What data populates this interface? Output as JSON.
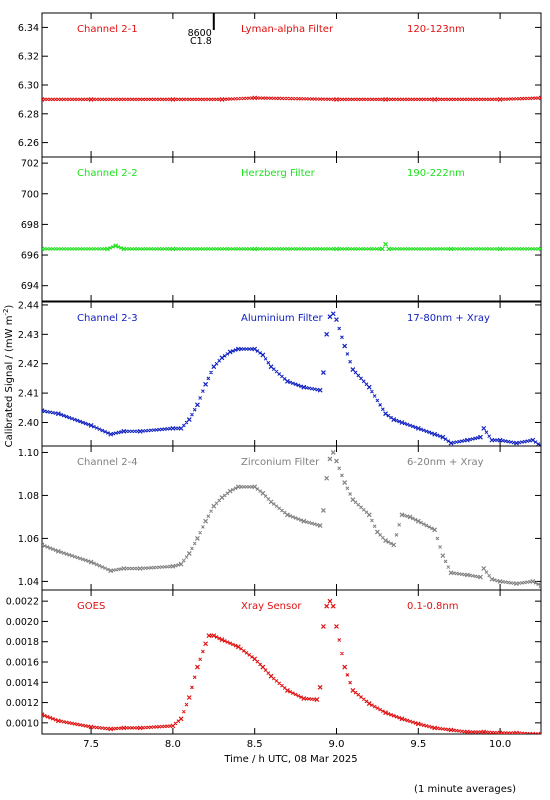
{
  "chart_data": [
    {
      "type": "scatter",
      "header": {
        "channel": "Channel 2-1",
        "filter": "Lyman-alpha Filter",
        "band": "120-123nm"
      },
      "color": "#e01010",
      "yticks": [
        "6.26",
        "6.28",
        "6.30",
        "6.32",
        "6.34"
      ],
      "ylim": [
        6.25,
        6.35
      ],
      "x": [
        7.2,
        7.5,
        8.0,
        8.3,
        8.5,
        9.0,
        9.3,
        9.6,
        10.0,
        10.25
      ],
      "y": [
        6.29,
        6.29,
        6.29,
        6.29,
        6.291,
        6.29,
        6.29,
        6.29,
        6.29,
        6.291
      ]
    },
    {
      "type": "scatter",
      "header": {
        "channel": "Channel 2-2",
        "filter": "Herzberg Filter",
        "band": "190-222nm"
      },
      "color": "#20e020",
      "yticks": [
        "694",
        "696",
        "698",
        "700",
        "702"
      ],
      "ylim": [
        693,
        702.4
      ],
      "x": [
        7.2,
        7.6,
        7.65,
        7.7,
        8.0,
        8.5,
        9.0,
        9.28,
        9.3,
        9.32,
        9.7,
        10.0,
        10.25
      ],
      "y": [
        696.4,
        696.4,
        696.6,
        696.4,
        696.4,
        696.4,
        696.4,
        696.4,
        696.7,
        696.4,
        696.4,
        696.4,
        696.4
      ]
    },
    {
      "type": "scatter",
      "header": {
        "channel": "Channel 2-3",
        "filter": "Aluminium Filter",
        "band": "17-80nm + Xray"
      },
      "color": "#1020c0",
      "yticks": [
        "2.40",
        "2.41",
        "2.42",
        "2.43",
        "2.44"
      ],
      "ylim": [
        2.392,
        2.441
      ],
      "x": [
        7.2,
        7.3,
        7.5,
        7.62,
        7.7,
        7.8,
        8.0,
        8.05,
        8.1,
        8.15,
        8.2,
        8.25,
        8.3,
        8.35,
        8.4,
        8.5,
        8.55,
        8.6,
        8.7,
        8.8,
        8.9,
        8.92,
        8.94,
        8.96,
        8.98,
        9.0,
        9.05,
        9.1,
        9.2,
        9.3,
        9.35,
        9.4,
        9.5,
        9.6,
        9.65,
        9.7,
        9.8,
        9.88,
        9.9,
        9.95,
        10.0,
        10.1,
        10.2,
        10.25
      ],
      "y": [
        2.404,
        2.403,
        2.399,
        2.396,
        2.397,
        2.397,
        2.398,
        2.398,
        2.401,
        2.406,
        2.413,
        2.419,
        2.422,
        2.424,
        2.425,
        2.425,
        2.423,
        2.419,
        2.414,
        2.412,
        2.411,
        2.417,
        2.43,
        2.436,
        2.437,
        2.435,
        2.426,
        2.418,
        2.412,
        2.403,
        2.401,
        2.4,
        2.398,
        2.396,
        2.395,
        2.393,
        2.394,
        2.395,
        2.398,
        2.394,
        2.394,
        2.393,
        2.394,
        2.392
      ]
    },
    {
      "type": "scatter",
      "header": {
        "channel": "Channel 2-4",
        "filter": "Zirconium Filter",
        "band": "6-20nm + Xray"
      },
      "color": "#808080",
      "yticks": [
        "1.04",
        "1.06",
        "1.08",
        "1.10"
      ],
      "ylim": [
        1.036,
        1.103
      ],
      "x": [
        7.2,
        7.3,
        7.5,
        7.62,
        7.7,
        7.8,
        8.0,
        8.05,
        8.1,
        8.15,
        8.2,
        8.25,
        8.3,
        8.35,
        8.4,
        8.5,
        8.55,
        8.6,
        8.7,
        8.8,
        8.9,
        8.92,
        8.94,
        8.96,
        8.98,
        9.0,
        9.05,
        9.1,
        9.2,
        9.25,
        9.3,
        9.35,
        9.4,
        9.45,
        9.5,
        9.6,
        9.65,
        9.7,
        9.8,
        9.88,
        9.9,
        9.95,
        10.0,
        10.1,
        10.2,
        10.25
      ],
      "y": [
        1.057,
        1.054,
        1.049,
        1.045,
        1.046,
        1.046,
        1.047,
        1.048,
        1.053,
        1.06,
        1.068,
        1.075,
        1.079,
        1.082,
        1.084,
        1.084,
        1.081,
        1.077,
        1.071,
        1.068,
        1.066,
        1.073,
        1.088,
        1.097,
        1.1,
        1.096,
        1.086,
        1.078,
        1.071,
        1.063,
        1.059,
        1.057,
        1.071,
        1.07,
        1.068,
        1.064,
        1.052,
        1.044,
        1.043,
        1.042,
        1.046,
        1.041,
        1.04,
        1.039,
        1.04,
        1.038
      ]
    },
    {
      "type": "scatter",
      "header": {
        "channel": "GOES",
        "filter": "Xray Sensor",
        "band": "0.1-0.8nm"
      },
      "color": "#e01010",
      "yticks": [
        "0.0010",
        "0.0012",
        "0.0014",
        "0.0016",
        "0.0018",
        "0.0020",
        "0.0022"
      ],
      "ylim": [
        0.00089,
        0.00231
      ],
      "x": [
        7.2,
        7.3,
        7.5,
        7.62,
        7.7,
        7.8,
        8.0,
        8.05,
        8.1,
        8.15,
        8.2,
        8.22,
        8.25,
        8.3,
        8.4,
        8.5,
        8.55,
        8.6,
        8.7,
        8.8,
        8.88,
        8.9,
        8.92,
        8.94,
        8.96,
        8.98,
        9.0,
        9.05,
        9.1,
        9.2,
        9.3,
        9.4,
        9.5,
        9.6,
        9.7,
        9.8,
        9.9,
        10.0,
        10.1,
        10.2,
        10.25
      ],
      "y": [
        0.00108,
        0.00102,
        0.00096,
        0.00094,
        0.00095,
        0.00095,
        0.00097,
        0.00104,
        0.00125,
        0.00155,
        0.00178,
        0.00186,
        0.00186,
        0.00182,
        0.00175,
        0.00163,
        0.00155,
        0.00146,
        0.00132,
        0.00124,
        0.00123,
        0.00135,
        0.00195,
        0.00215,
        0.0022,
        0.00215,
        0.00195,
        0.00155,
        0.00132,
        0.00119,
        0.0011,
        0.00104,
        0.00099,
        0.00095,
        0.00093,
        0.00091,
        0.00091,
        0.0009,
        0.0009,
        0.00089,
        0.00089
      ]
    }
  ],
  "xaxis": {
    "xlim": [
      7.2,
      10.25
    ],
    "ticks": [
      7.5,
      8.0,
      8.5,
      9.0,
      9.5,
      10.0
    ],
    "ticklabels": [
      "7.5",
      "8.0",
      "8.5",
      "9.0",
      "9.5",
      "10.0"
    ],
    "label": "Time / h UTC, 08 Mar 2025"
  },
  "ylabel_main": "Calibrated Signal / (mW m",
  "ylabel_sup": "-2",
  "ylabel_close": ")",
  "flare_marker": {
    "x": 8.25,
    "num": "8600",
    "cls": "C1.8"
  },
  "footnote": "(1 minute averages)"
}
